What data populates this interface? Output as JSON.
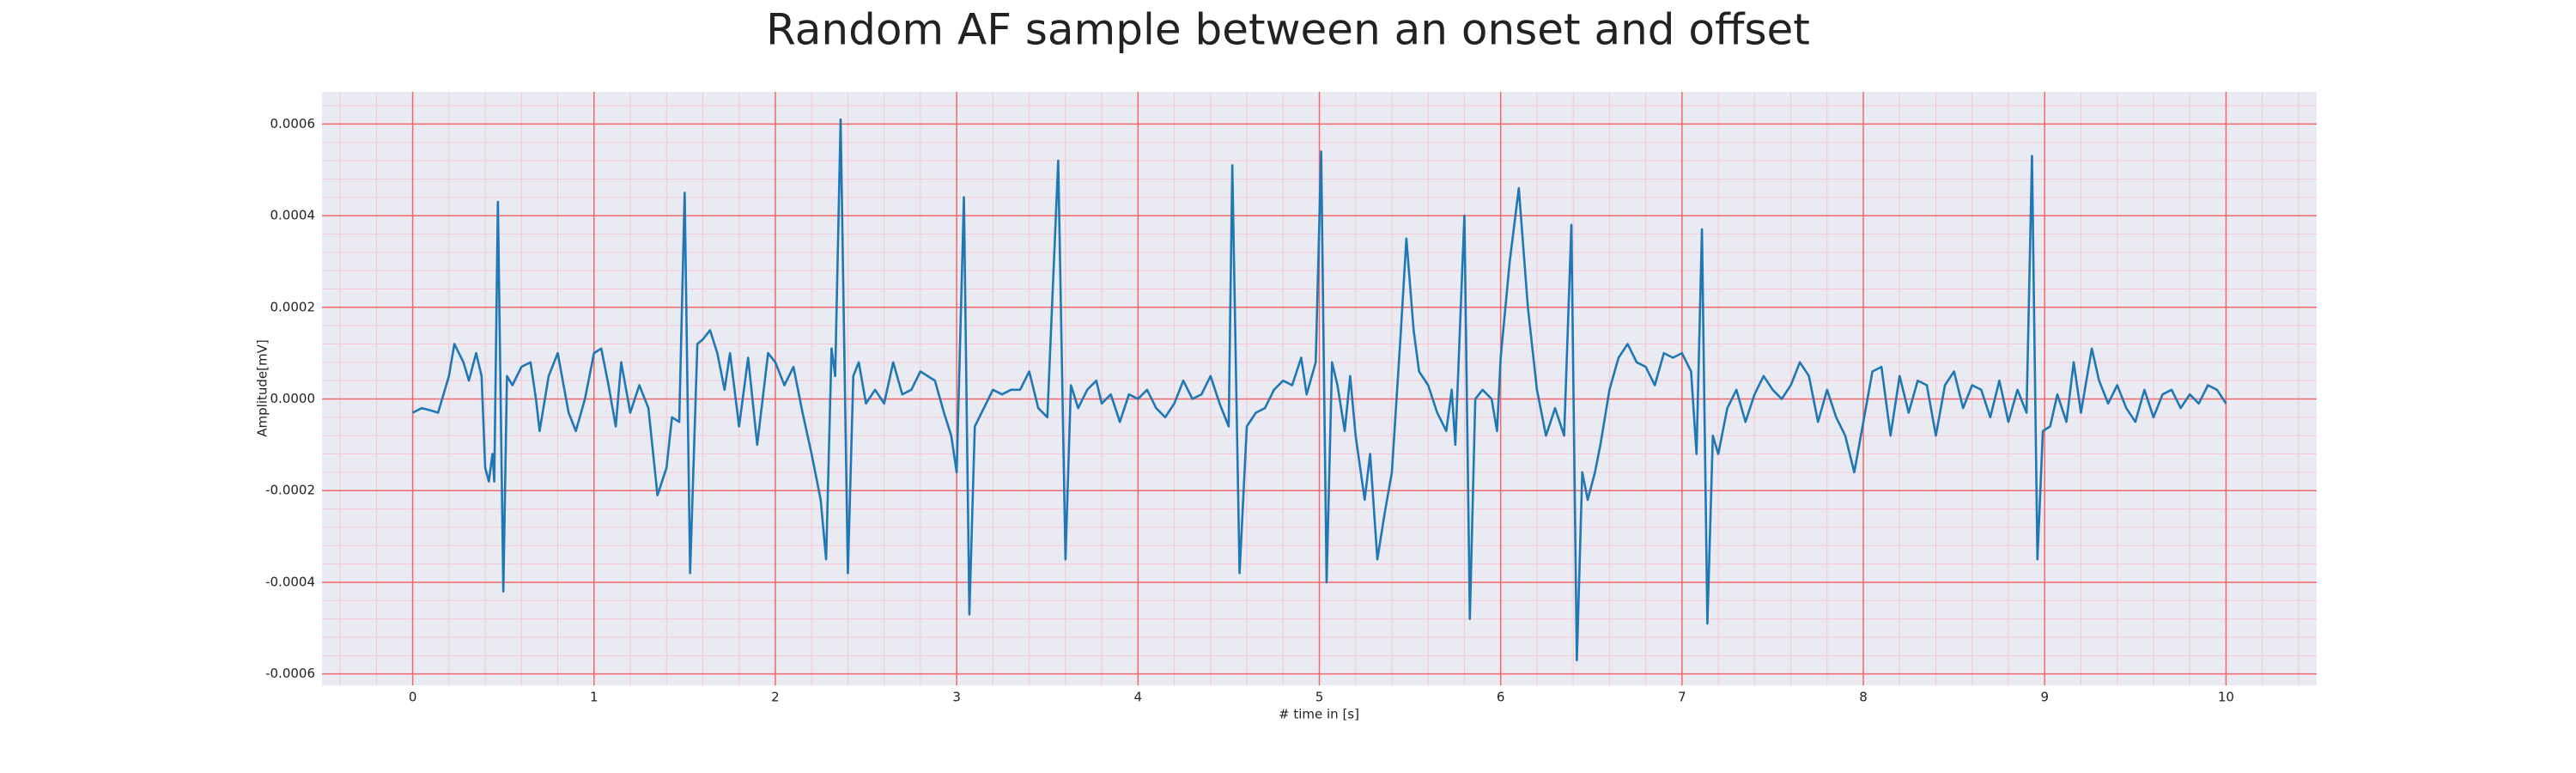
{
  "chart_data": {
    "type": "line",
    "title": "Random AF sample between an onset and offset",
    "x_label": "# time in [s]",
    "y_label": "Amplitude[mV]",
    "color": "#1f77b4",
    "grid": true,
    "minor_grid": true,
    "xlim": [
      -0.5,
      10.5
    ],
    "ylim": [
      -0.000625,
      0.00067
    ],
    "xticks": [
      0,
      1,
      2,
      3,
      4,
      5,
      6,
      7,
      8,
      9,
      10
    ],
    "yticks": [
      -0.0006,
      -0.0004,
      -0.0002,
      {
        "value": 0,
        "label": "0.0000"
      },
      0.0002,
      0.0004,
      0.0006
    ],
    "x": [
      0,
      0.05,
      0.1,
      0.14,
      0.2,
      0.23,
      0.28,
      0.31,
      0.35,
      0.38,
      0.4,
      0.42,
      0.44,
      0.45,
      0.47,
      0.5,
      0.52,
      0.55,
      0.6,
      0.65,
      0.68,
      0.7,
      0.75,
      0.8,
      0.86,
      0.9,
      0.95,
      1.0,
      1.04,
      1.08,
      1.12,
      1.15,
      1.2,
      1.25,
      1.3,
      1.35,
      1.4,
      1.43,
      1.47,
      1.5,
      1.53,
      1.57,
      1.6,
      1.64,
      1.68,
      1.72,
      1.75,
      1.8,
      1.85,
      1.9,
      1.96,
      2.0,
      2.05,
      2.1,
      2.15,
      2.2,
      2.25,
      2.28,
      2.31,
      2.33,
      2.36,
      2.4,
      2.43,
      2.46,
      2.5,
      2.55,
      2.6,
      2.65,
      2.7,
      2.75,
      2.8,
      2.88,
      2.93,
      2.97,
      3.0,
      3.04,
      3.07,
      3.1,
      3.15,
      3.2,
      3.25,
      3.3,
      3.35,
      3.4,
      3.45,
      3.5,
      3.56,
      3.6,
      3.63,
      3.67,
      3.72,
      3.77,
      3.8,
      3.85,
      3.9,
      3.95,
      4.0,
      4.05,
      4.1,
      4.15,
      4.2,
      4.25,
      4.3,
      4.35,
      4.4,
      4.45,
      4.5,
      4.52,
      4.56,
      4.6,
      4.65,
      4.7,
      4.75,
      4.8,
      4.85,
      4.9,
      4.93,
      4.98,
      5.01,
      5.04,
      5.07,
      5.1,
      5.14,
      5.17,
      5.2,
      5.25,
      5.28,
      5.32,
      5.36,
      5.4,
      5.45,
      5.48,
      5.52,
      5.55,
      5.6,
      5.65,
      5.7,
      5.73,
      5.75,
      5.8,
      5.83,
      5.86,
      5.9,
      5.95,
      5.98,
      6.0,
      6.05,
      6.1,
      6.15,
      6.2,
      6.25,
      6.3,
      6.35,
      6.39,
      6.42,
      6.45,
      6.48,
      6.52,
      6.55,
      6.6,
      6.65,
      6.7,
      6.75,
      6.8,
      6.85,
      6.9,
      6.95,
      7.0,
      7.05,
      7.08,
      7.11,
      7.14,
      7.17,
      7.2,
      7.25,
      7.3,
      7.35,
      7.4,
      7.45,
      7.5,
      7.55,
      7.6,
      7.65,
      7.7,
      7.75,
      7.8,
      7.85,
      7.9,
      7.95,
      8.0,
      8.05,
      8.1,
      8.15,
      8.2,
      8.25,
      8.3,
      8.35,
      8.4,
      8.45,
      8.5,
      8.55,
      8.6,
      8.65,
      8.7,
      8.75,
      8.8,
      8.85,
      8.9,
      8.93,
      8.96,
      8.99,
      9.03,
      9.07,
      9.12,
      9.16,
      9.2,
      9.26,
      9.3,
      9.35,
      9.4,
      9.45,
      9.5,
      9.55,
      9.6,
      9.65,
      9.7,
      9.75,
      9.8,
      9.85,
      9.9,
      9.95,
      10.0
    ],
    "values": [
      -3e-05,
      -2e-05,
      -2.5e-05,
      -3e-05,
      5e-05,
      0.00012,
      8e-05,
      4e-05,
      0.0001,
      5e-05,
      -0.00015,
      -0.00018,
      -0.00012,
      -0.00018,
      0.00043,
      -0.00042,
      5e-05,
      3e-05,
      7e-05,
      8e-05,
      0,
      -7e-05,
      5e-05,
      0.0001,
      -3e-05,
      -7e-05,
      0,
      0.0001,
      0.00011,
      3e-05,
      -6e-05,
      8e-05,
      -3e-05,
      3e-05,
      -2e-05,
      -0.00021,
      -0.00015,
      -4e-05,
      -5e-05,
      0.00045,
      -0.00038,
      0.00012,
      0.00013,
      0.00015,
      0.0001,
      2e-05,
      0.0001,
      -6e-05,
      9e-05,
      -0.0001,
      0.0001,
      8e-05,
      3e-05,
      7e-05,
      -3e-05,
      -0.00012,
      -0.00022,
      -0.00035,
      0.00011,
      5e-05,
      0.00061,
      -0.00038,
      5e-05,
      8e-05,
      -1e-05,
      2e-05,
      -1e-05,
      8e-05,
      1e-05,
      2e-05,
      6e-05,
      4e-05,
      -3e-05,
      -8e-05,
      -0.00016,
      0.00044,
      -0.00047,
      -6e-05,
      -2e-05,
      2e-05,
      1e-05,
      2e-05,
      2e-05,
      6e-05,
      -2e-05,
      -4e-05,
      0.00052,
      -0.00035,
      3e-05,
      -2e-05,
      2e-05,
      4e-05,
      -1e-05,
      1e-05,
      -5e-05,
      1e-05,
      0,
      2e-05,
      -2e-05,
      -4e-05,
      -1e-05,
      4e-05,
      0,
      1e-05,
      5e-05,
      -1e-05,
      -6e-05,
      0.00051,
      -0.00038,
      -6e-05,
      -3e-05,
      -2e-05,
      2e-05,
      4e-05,
      3e-05,
      9e-05,
      1e-05,
      8e-05,
      0.00054,
      -0.0004,
      8e-05,
      3e-05,
      -7e-05,
      5e-05,
      -8e-05,
      -0.00022,
      -0.00012,
      -0.00035,
      -0.00025,
      -0.00016,
      0.00015,
      0.00035,
      0.00015,
      6e-05,
      3e-05,
      -3e-05,
      -7e-05,
      2e-05,
      -0.0001,
      0.0004,
      -0.00048,
      0,
      2e-05,
      0,
      -7e-05,
      9e-05,
      0.0003,
      0.00046,
      0.0002,
      2e-05,
      -8e-05,
      -2e-05,
      -8e-05,
      0.00038,
      -0.00057,
      -0.00016,
      -0.00022,
      -0.00016,
      -0.0001,
      2e-05,
      9e-05,
      0.00012,
      8e-05,
      7e-05,
      3e-05,
      0.0001,
      9e-05,
      0.0001,
      6e-05,
      -0.00012,
      0.00037,
      -0.00049,
      -8e-05,
      -0.00012,
      -2e-05,
      2e-05,
      -5e-05,
      1e-05,
      5e-05,
      2e-05,
      0,
      3e-05,
      8e-05,
      5e-05,
      -5e-05,
      2e-05,
      -4e-05,
      -8e-05,
      -0.00016,
      -5e-05,
      6e-05,
      7e-05,
      -8e-05,
      5e-05,
      -3e-05,
      4e-05,
      3e-05,
      -8e-05,
      3e-05,
      6e-05,
      -2e-05,
      3e-05,
      2e-05,
      -4e-05,
      4e-05,
      -5e-05,
      2e-05,
      -3e-05,
      0.00053,
      -0.00035,
      -7e-05,
      -6e-05,
      1e-05,
      -5e-05,
      8e-05,
      -3e-05,
      0.00011,
      4e-05,
      -1e-05,
      3e-05,
      -2e-05,
      -5e-05,
      2e-05,
      -4e-05,
      1e-05,
      2e-05,
      -2e-05,
      1e-05,
      -1e-05,
      3e-05,
      2e-05,
      -1e-05
    ]
  }
}
